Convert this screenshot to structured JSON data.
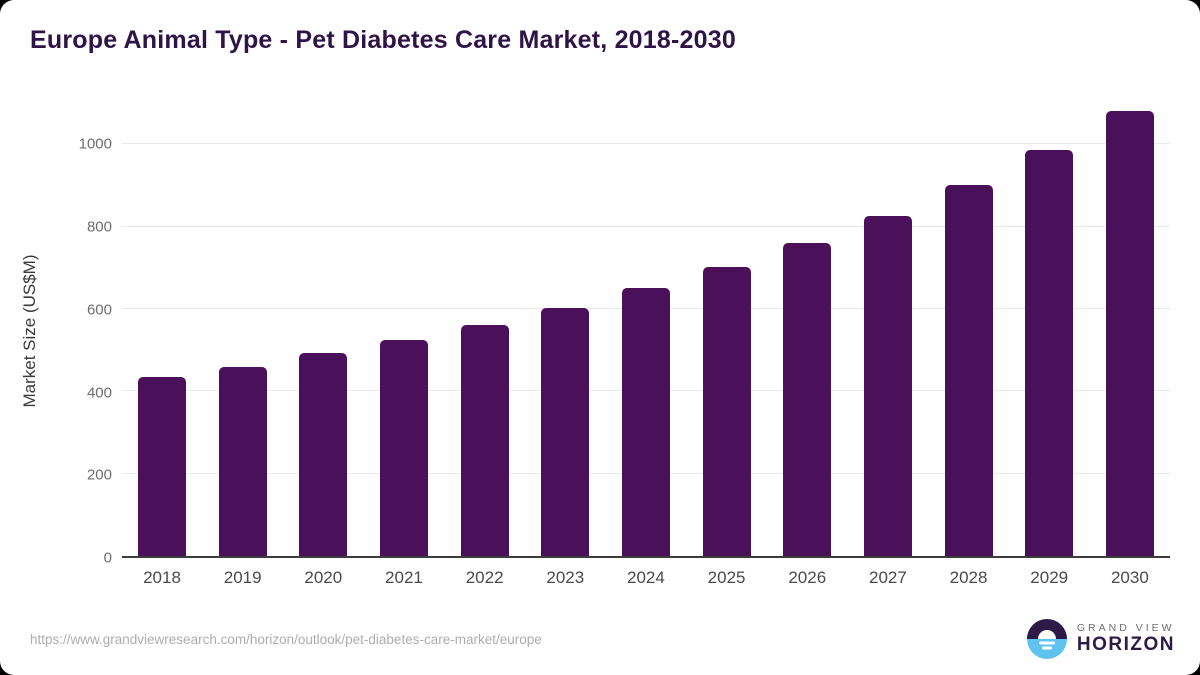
{
  "page_title": "Europe Animal Type - Pet Diabetes Care Market, 2018-2030",
  "chart_data": {
    "type": "bar",
    "title": "Europe Animal Type - Pet Diabetes Care Market, 2018-2030",
    "categories": [
      "2018",
      "2019",
      "2020",
      "2021",
      "2022",
      "2023",
      "2024",
      "2025",
      "2026",
      "2027",
      "2028",
      "2029",
      "2030"
    ],
    "values": [
      435,
      460,
      492,
      525,
      562,
      603,
      650,
      701,
      760,
      826,
      901,
      986,
      1080
    ],
    "xlabel": "",
    "ylabel": "Market Size (US$M)",
    "yticks": [
      0,
      200,
      400,
      600,
      800,
      1000
    ],
    "ylim": [
      0,
      1100
    ],
    "grid": "horizontal",
    "legend": "none",
    "bar_color": "#4a1059"
  },
  "footer": {
    "source_url": "https://www.grandviewresearch.com/horizon/outlook/pet-diabetes-care-market/europe",
    "logo_line1": "GRAND VIEW",
    "logo_line2": "HORIZON"
  },
  "colors": {
    "title": "#2e1447",
    "bar": "#4a1059",
    "gridline": "#e9e9ec",
    "axis_line": "#3c3c3c",
    "logo_dark": "#2e1a47",
    "logo_blue": "#5fc3ee"
  }
}
